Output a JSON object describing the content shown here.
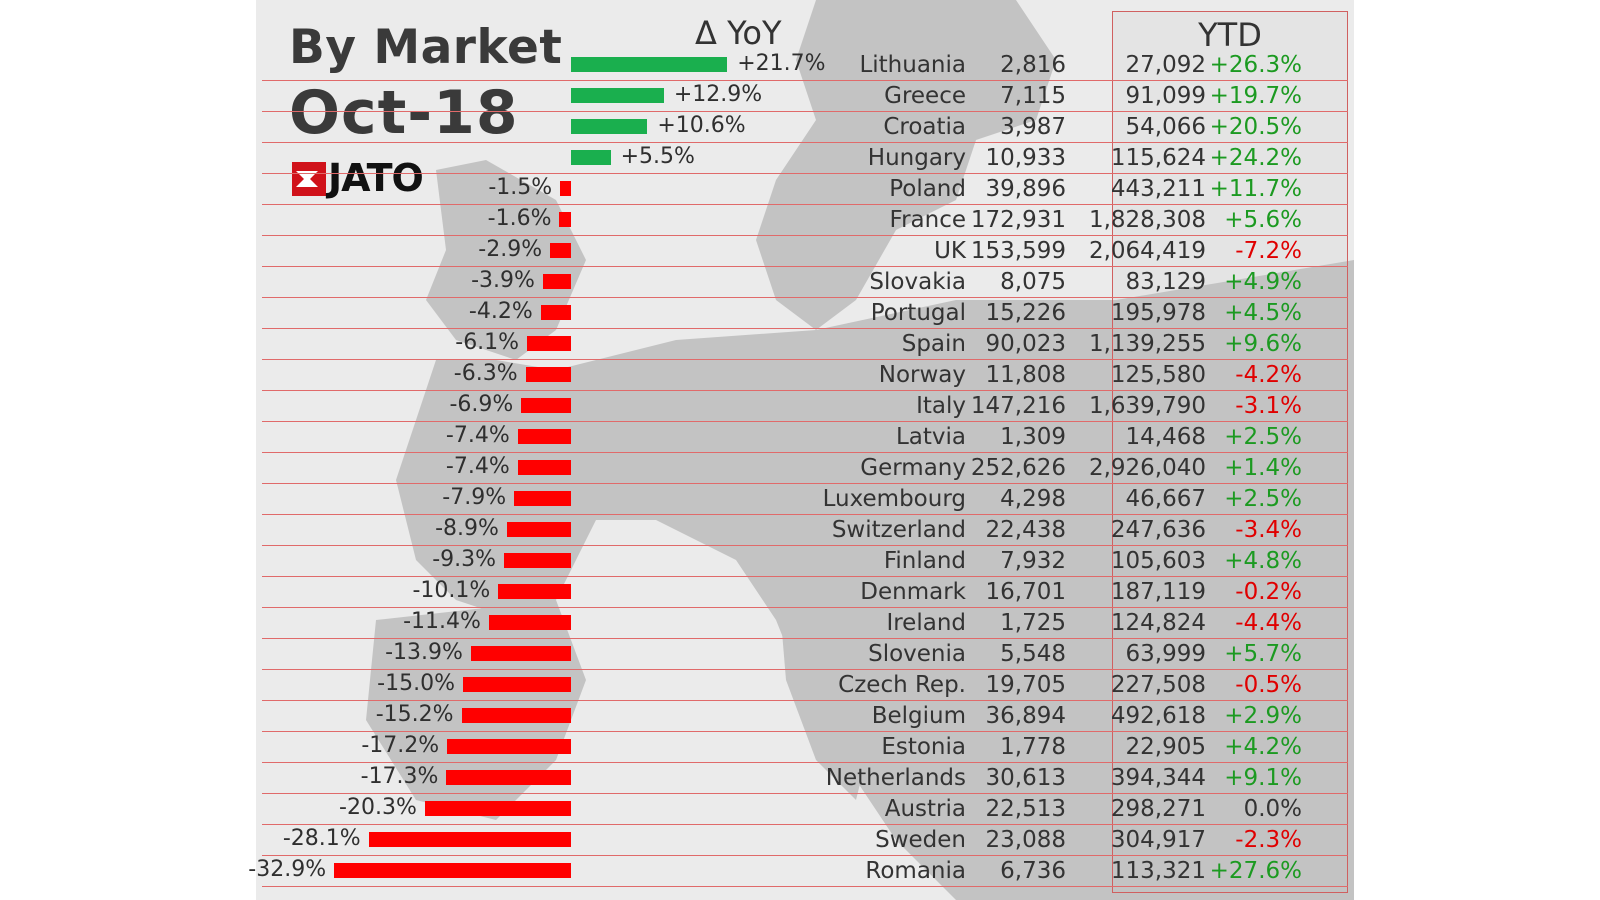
{
  "header": {
    "title": "By Market",
    "period": "Oct-18",
    "logo_text": "JATO",
    "yoy_header": "Δ YoY",
    "ytd_header": "YTD"
  },
  "colors": {
    "positive_bar": "#1aaf4e",
    "negative_bar": "#ff0000",
    "positive_text": "#1c9a21",
    "negative_text": "#e00000",
    "row_line": "#e06a6a",
    "logo_red": "#d0121a"
  },
  "chart_data": {
    "type": "bar",
    "orientation": "horizontal",
    "categories": [
      "Lithuania",
      "Greece",
      "Croatia",
      "Hungary",
      "Poland",
      "France",
      "UK",
      "Slovakia",
      "Portugal",
      "Spain",
      "Norway",
      "Italy",
      "Latvia",
      "Germany",
      "Luxembourg",
      "Switzerland",
      "Finland",
      "Denmark",
      "Ireland",
      "Slovenia",
      "Czech Rep.",
      "Belgium",
      "Estonia",
      "Netherlands",
      "Austria",
      "Sweden",
      "Romania"
    ],
    "series": [
      {
        "name": "Δ YoY",
        "values": [
          21.7,
          12.9,
          10.6,
          5.5,
          -1.5,
          -1.6,
          -2.9,
          -3.9,
          -4.2,
          -6.1,
          -6.3,
          -6.9,
          -7.4,
          -7.4,
          -7.9,
          -8.9,
          -9.3,
          -10.1,
          -11.4,
          -13.9,
          -15.0,
          -15.2,
          -17.2,
          -17.3,
          -20.3,
          -28.1,
          -32.9
        ]
      }
    ],
    "labels": [
      "+21.7%",
      "+12.9%",
      "+10.6%",
      "+5.5%",
      "-1.5%",
      "-1.6%",
      "-2.9%",
      "-3.9%",
      "-4.2%",
      "-6.1%",
      "-6.3%",
      "-6.9%",
      "-7.4%",
      "-7.4%",
      "-7.9%",
      "-8.9%",
      "-9.3%",
      "-10.1%",
      "-11.4%",
      "-13.9%",
      "-15.0%",
      "-15.2%",
      "-17.2%",
      "-17.3%",
      "-20.3%",
      "-28.1%",
      "-32.9%"
    ],
    "title": "By Market Oct-18"
  },
  "table": {
    "rows": [
      {
        "country": "Lithuania",
        "month": "2,816",
        "ytd": "27,092",
        "ytd_change": "+26.3%"
      },
      {
        "country": "Greece",
        "month": "7,115",
        "ytd": "91,099",
        "ytd_change": "+19.7%"
      },
      {
        "country": "Croatia",
        "month": "3,987",
        "ytd": "54,066",
        "ytd_change": "+20.5%"
      },
      {
        "country": "Hungary",
        "month": "10,933",
        "ytd": "115,624",
        "ytd_change": "+24.2%"
      },
      {
        "country": "Poland",
        "month": "39,896",
        "ytd": "443,211",
        "ytd_change": "+11.7%"
      },
      {
        "country": "France",
        "month": "172,931",
        "ytd": "1,828,308",
        "ytd_change": "+5.6%"
      },
      {
        "country": "UK",
        "month": "153,599",
        "ytd": "2,064,419",
        "ytd_change": "-7.2%"
      },
      {
        "country": "Slovakia",
        "month": "8,075",
        "ytd": "83,129",
        "ytd_change": "+4.9%"
      },
      {
        "country": "Portugal",
        "month": "15,226",
        "ytd": "195,978",
        "ytd_change": "+4.5%"
      },
      {
        "country": "Spain",
        "month": "90,023",
        "ytd": "1,139,255",
        "ytd_change": "+9.6%"
      },
      {
        "country": "Norway",
        "month": "11,808",
        "ytd": "125,580",
        "ytd_change": "-4.2%"
      },
      {
        "country": "Italy",
        "month": "147,216",
        "ytd": "1,639,790",
        "ytd_change": "-3.1%"
      },
      {
        "country": "Latvia",
        "month": "1,309",
        "ytd": "14,468",
        "ytd_change": "+2.5%"
      },
      {
        "country": "Germany",
        "month": "252,626",
        "ytd": "2,926,040",
        "ytd_change": "+1.4%"
      },
      {
        "country": "Luxembourg",
        "month": "4,298",
        "ytd": "46,667",
        "ytd_change": "+2.5%"
      },
      {
        "country": "Switzerland",
        "month": "22,438",
        "ytd": "247,636",
        "ytd_change": "-3.4%"
      },
      {
        "country": "Finland",
        "month": "7,932",
        "ytd": "105,603",
        "ytd_change": "+4.8%"
      },
      {
        "country": "Denmark",
        "month": "16,701",
        "ytd": "187,119",
        "ytd_change": "-0.2%"
      },
      {
        "country": "Ireland",
        "month": "1,725",
        "ytd": "124,824",
        "ytd_change": "-4.4%"
      },
      {
        "country": "Slovenia",
        "month": "5,548",
        "ytd": "63,999",
        "ytd_change": "+5.7%"
      },
      {
        "country": "Czech Rep.",
        "month": "19,705",
        "ytd": "227,508",
        "ytd_change": "-0.5%"
      },
      {
        "country": "Belgium",
        "month": "36,894",
        "ytd": "492,618",
        "ytd_change": "+2.9%"
      },
      {
        "country": "Estonia",
        "month": "1,778",
        "ytd": "22,905",
        "ytd_change": "+4.2%"
      },
      {
        "country": "Netherlands",
        "month": "30,613",
        "ytd": "394,344",
        "ytd_change": "+9.1%"
      },
      {
        "country": "Austria",
        "month": "22,513",
        "ytd": "298,271",
        "ytd_change": "0.0%"
      },
      {
        "country": "Sweden",
        "month": "23,088",
        "ytd": "304,917",
        "ytd_change": "-2.3%"
      },
      {
        "country": "Romania",
        "month": "6,736",
        "ytd": "113,321",
        "ytd_change": "+27.6%"
      }
    ]
  }
}
